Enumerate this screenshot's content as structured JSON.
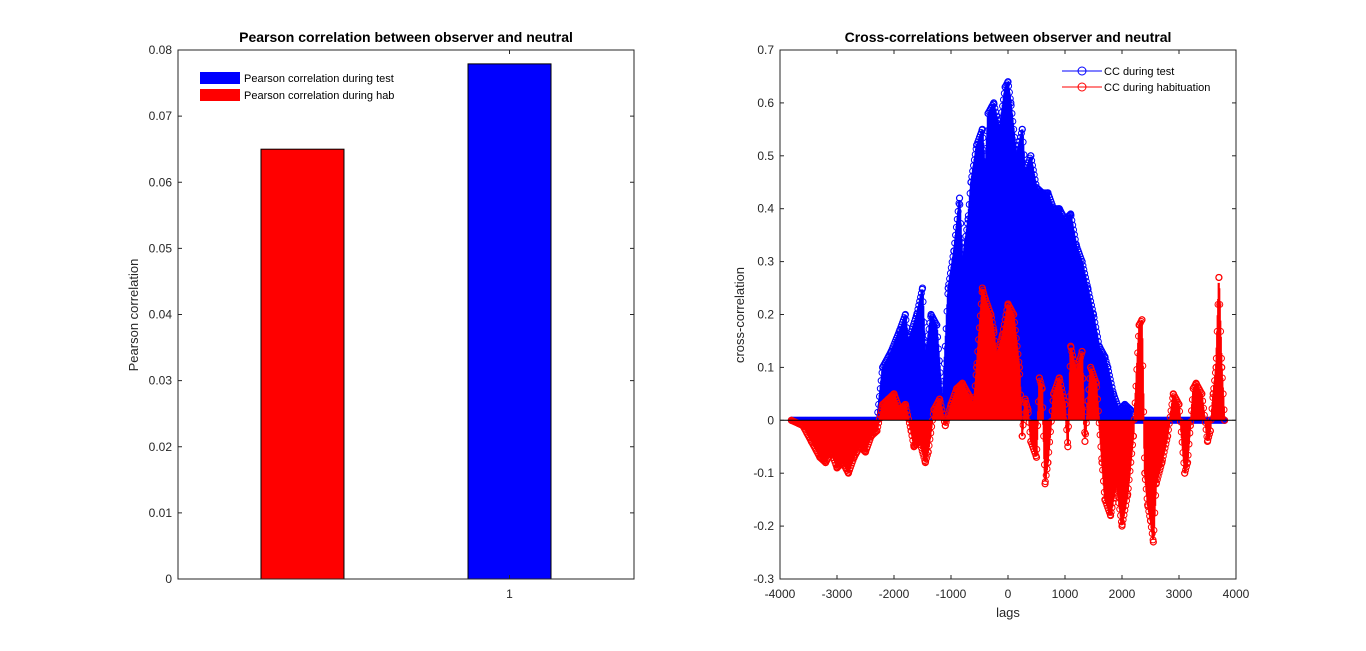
{
  "chart_data": [
    {
      "type": "bar",
      "title": "Pearson correlation between observer and neutral",
      "xlabel": "",
      "ylabel": "Pearson correlation",
      "categories": [
        "1"
      ],
      "ylim": [
        0,
        0.08
      ],
      "yticks": [
        "0",
        "0.01",
        "0.02",
        "0.03",
        "0.04",
        "0.05",
        "0.06",
        "0.07",
        "0.08"
      ],
      "series": [
        {
          "name": "Pearson correlation during hab",
          "color": "#ff0000",
          "values": [
            0.065
          ]
        },
        {
          "name": "Pearson correlation during test",
          "color": "#0000ff",
          "values": [
            0.0779
          ]
        }
      ],
      "legend": [
        {
          "label": "Pearson correlation during test",
          "color": "#0000ff"
        },
        {
          "label": "Pearson correlation during hab",
          "color": "#ff0000"
        }
      ],
      "legend_position": "top-left",
      "grid": false
    },
    {
      "type": "line",
      "title": "Cross-correlations between observer and neutral",
      "xlabel": "lags",
      "ylabel": "cross-correlation",
      "xlim": [
        -4000,
        4000
      ],
      "ylim": [
        -0.3,
        0.7
      ],
      "xticks": [
        "-4000",
        "-3000",
        "-2000",
        "-1000",
        "0",
        "1000",
        "2000",
        "3000",
        "4000"
      ],
      "yticks": [
        "-0.3",
        "-0.2",
        "-0.1",
        "0",
        "0.1",
        "0.2",
        "0.3",
        "0.4",
        "0.5",
        "0.6",
        "0.7"
      ],
      "marker": "circle",
      "stem_baseline": 0,
      "legend_position": "top-right",
      "grid": false,
      "series": [
        {
          "name": "CC during test",
          "color": "#0000ff",
          "x": [
            -3800,
            -2300,
            -2200,
            -2050,
            -1900,
            -1800,
            -1750,
            -1600,
            -1500,
            -1450,
            -1350,
            -1250,
            -1150,
            -1050,
            -950,
            -850,
            -800,
            -700,
            -650,
            -550,
            -450,
            -400,
            -350,
            -250,
            -150,
            -50,
            0,
            50,
            150,
            250,
            300,
            400,
            500,
            600,
            700,
            800,
            900,
            1000,
            1100,
            1200,
            1300,
            1400,
            1500,
            1600,
            1700,
            1750,
            1850,
            1950,
            2050,
            2150,
            2200,
            3800
          ],
          "y": [
            0,
            0,
            0.1,
            0.13,
            0.17,
            0.2,
            0.15,
            0.2,
            0.25,
            0.12,
            0.2,
            0.18,
            0.03,
            0.25,
            0.32,
            0.42,
            0.3,
            0.38,
            0.45,
            0.52,
            0.55,
            0.47,
            0.58,
            0.6,
            0.55,
            0.63,
            0.64,
            0.6,
            0.5,
            0.55,
            0.47,
            0.5,
            0.44,
            0.43,
            0.43,
            0.4,
            0.4,
            0.38,
            0.39,
            0.33,
            0.3,
            0.25,
            0.2,
            0.14,
            0.12,
            0.1,
            0.05,
            0.02,
            0.03,
            0.02,
            0,
            0
          ]
        },
        {
          "name": "CC during habituation",
          "color": "#ff0000",
          "x": [
            -3800,
            -3600,
            -3450,
            -3300,
            -3200,
            -3100,
            -3000,
            -2900,
            -2800,
            -2700,
            -2600,
            -2500,
            -2400,
            -2300,
            -2200,
            -2100,
            -2000,
            -1900,
            -1800,
            -1700,
            -1650,
            -1550,
            -1450,
            -1400,
            -1300,
            -1200,
            -1100,
            -1000,
            -900,
            -800,
            -700,
            -600,
            -550,
            -450,
            -400,
            -300,
            -250,
            -200,
            -100,
            0,
            100,
            200,
            250,
            300,
            350,
            400,
            500,
            550,
            600,
            650,
            700,
            800,
            900,
            1000,
            1050,
            1100,
            1200,
            1300,
            1350,
            1450,
            1550,
            1650,
            1700,
            1800,
            1900,
            2000,
            2100,
            2200,
            2300,
            2350,
            2400,
            2450,
            2500,
            2550,
            2600,
            2700,
            2800,
            2900,
            3000,
            3100,
            3150,
            3200,
            3250,
            3300,
            3400,
            3500,
            3550,
            3600,
            3650,
            3700,
            3750,
            3800
          ],
          "y": [
            0,
            -0.01,
            -0.04,
            -0.07,
            -0.08,
            -0.06,
            -0.09,
            -0.08,
            -0.1,
            -0.07,
            -0.05,
            -0.06,
            -0.03,
            -0.02,
            0.03,
            0.04,
            0.05,
            0.02,
            0.03,
            -0.02,
            -0.05,
            -0.04,
            -0.08,
            -0.06,
            0.02,
            0.04,
            -0.01,
            0.03,
            0.06,
            0.07,
            0.05,
            0.03,
            0.1,
            0.25,
            0.23,
            0.2,
            0.17,
            0.12,
            0.16,
            0.22,
            0.2,
            0.1,
            -0.03,
            0.04,
            0.02,
            -0.04,
            -0.07,
            0.08,
            0.06,
            -0.12,
            -0.08,
            0.05,
            0.08,
            0.03,
            -0.05,
            0.14,
            0.09,
            0.13,
            -0.04,
            0.1,
            0.07,
            -0.08,
            -0.15,
            -0.18,
            -0.12,
            -0.2,
            -0.14,
            -0.03,
            0.18,
            0.19,
            -0.1,
            -0.16,
            -0.19,
            -0.23,
            -0.12,
            -0.08,
            -0.03,
            0.05,
            0.03,
            -0.1,
            -0.08,
            -0.01,
            0.06,
            0.07,
            0.05,
            -0.04,
            -0.02,
            0.05,
            0.1,
            0.27,
            0.1,
            0
          ]
        }
      ]
    }
  ]
}
